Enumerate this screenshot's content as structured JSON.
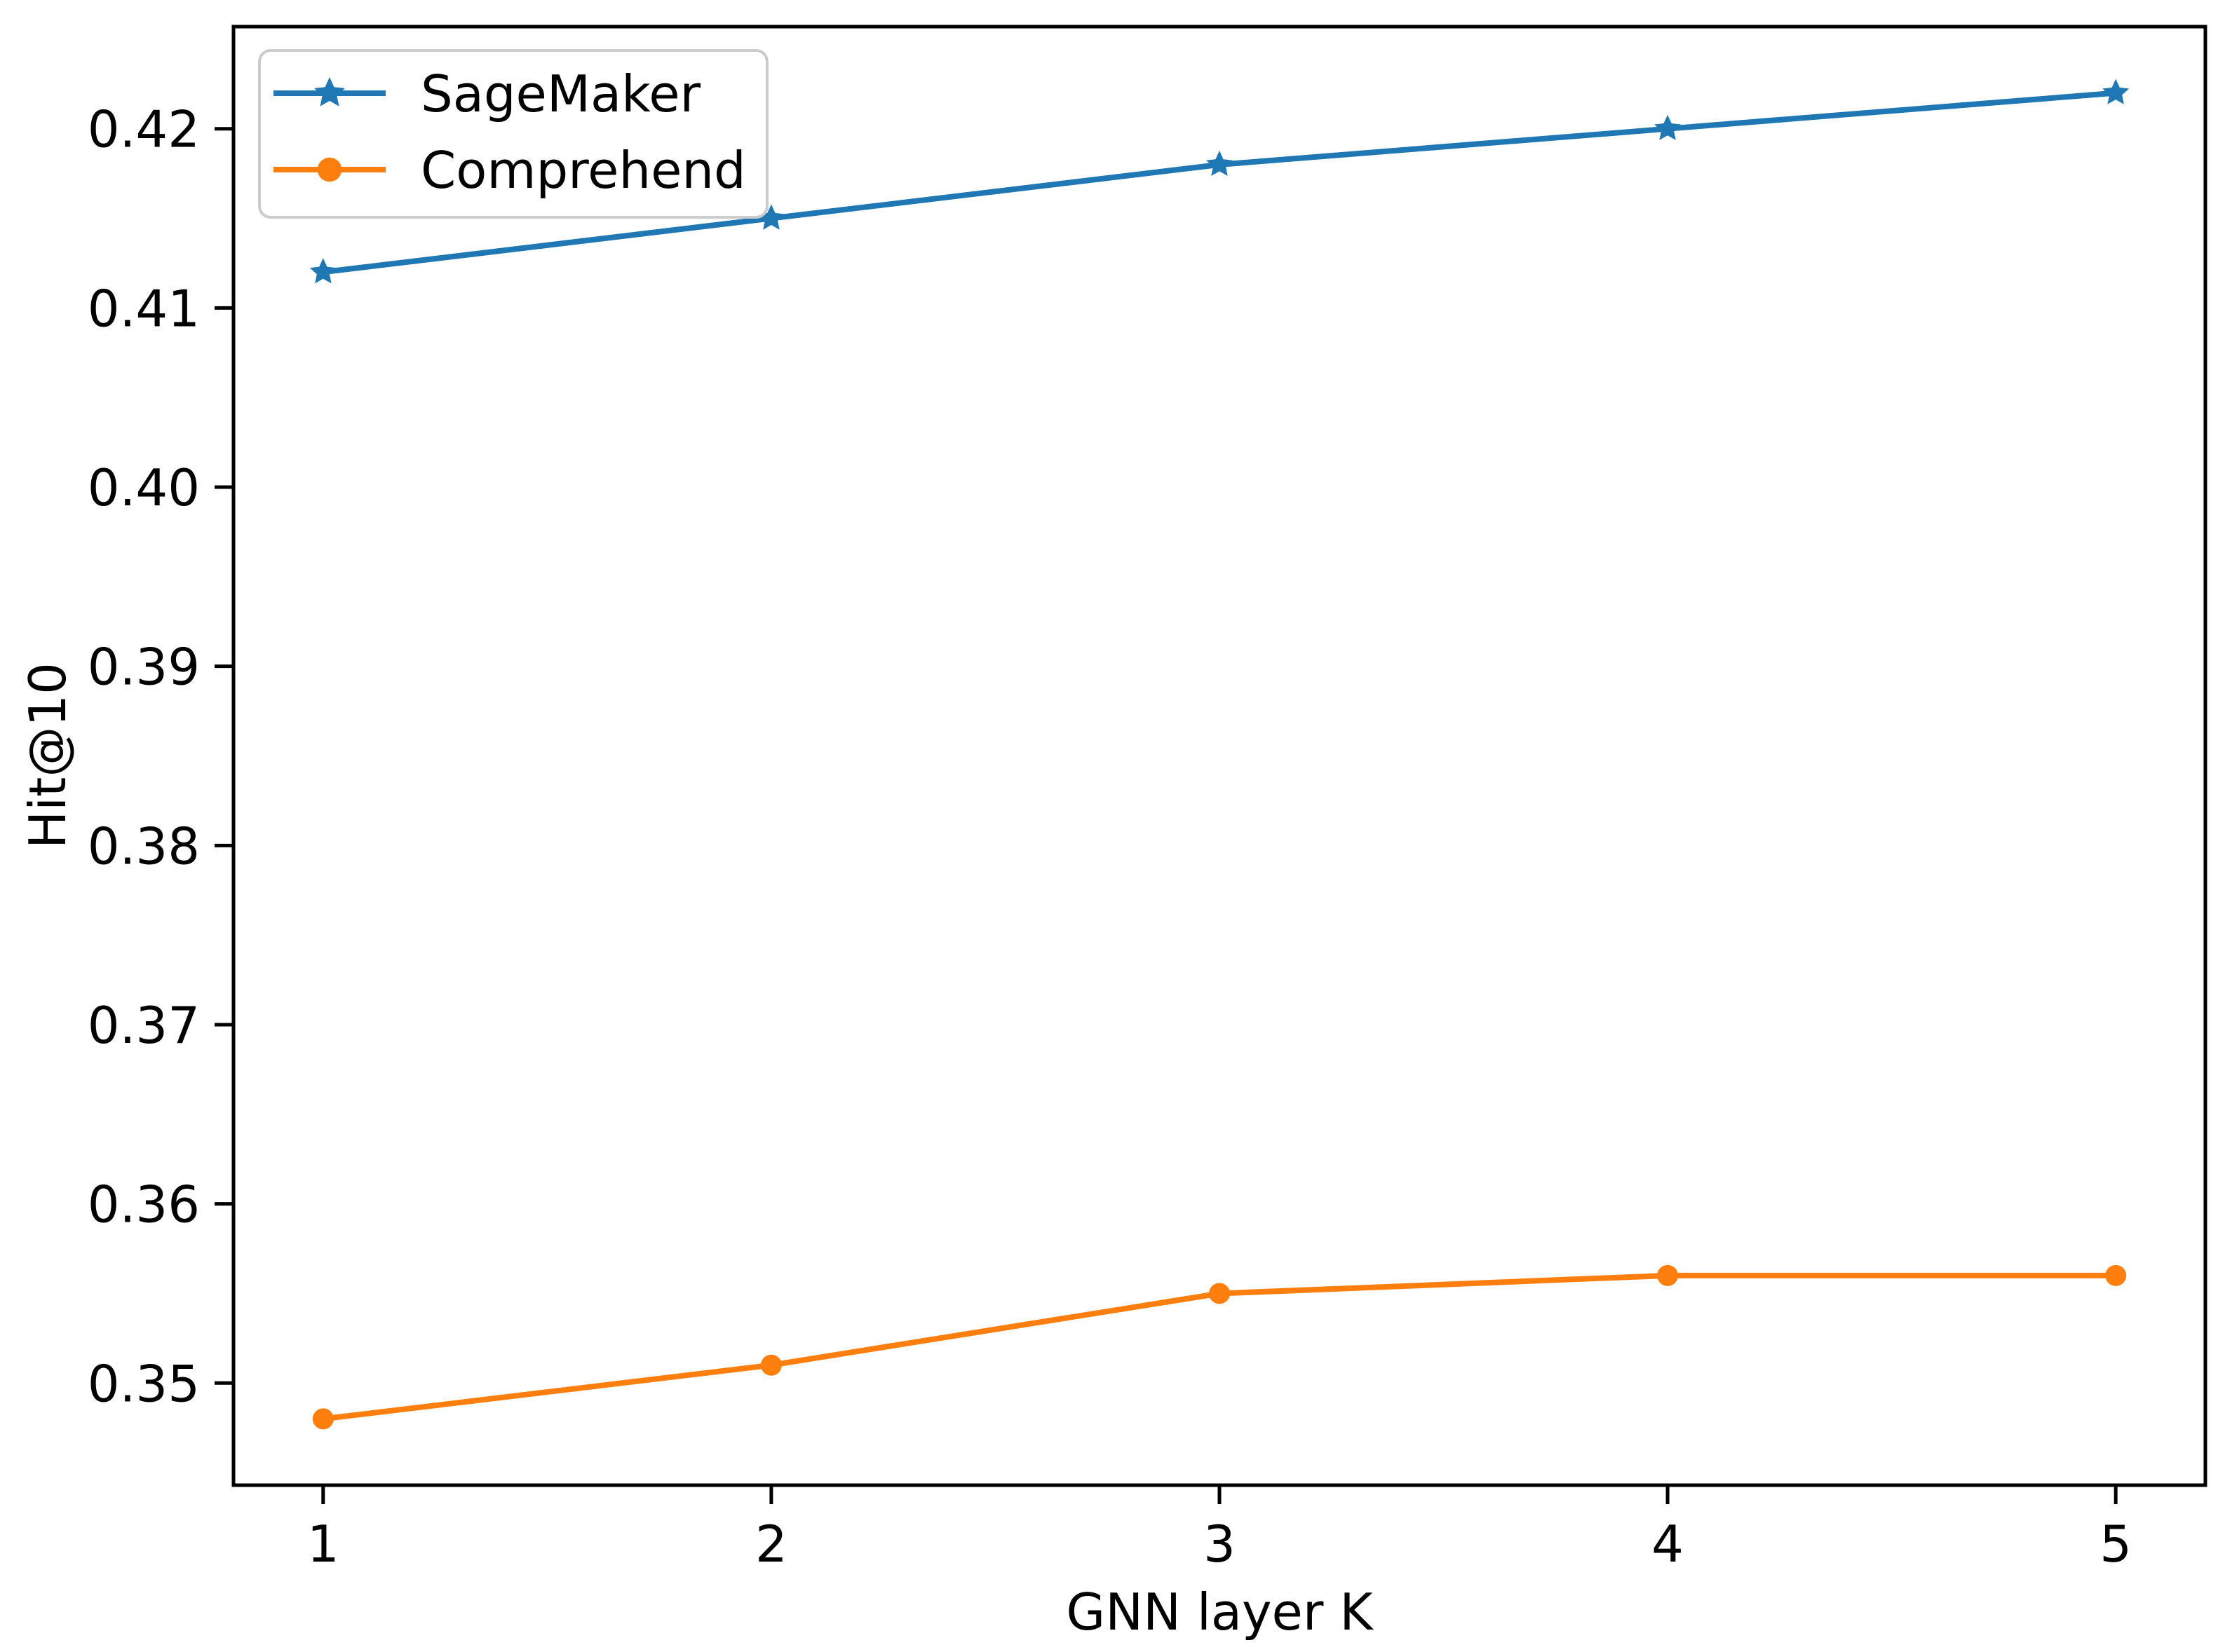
{
  "chart_data": {
    "type": "line",
    "title": "",
    "xlabel": "GNN layer K",
    "ylabel": "Hit@10",
    "x": [
      1,
      2,
      3,
      4,
      5
    ],
    "series": [
      {
        "name": "SageMaker",
        "color": "#1f77b4",
        "marker": "star",
        "values": [
          0.412,
          0.415,
          0.418,
          0.42,
          0.422
        ]
      },
      {
        "name": "Comprehend",
        "color": "#ff7f0e",
        "marker": "circle",
        "values": [
          0.348,
          0.351,
          0.355,
          0.356,
          0.356
        ]
      }
    ],
    "xlim": [
      0.8,
      5.2
    ],
    "ylim": [
      0.3443,
      0.4257
    ],
    "xticks": [
      1,
      2,
      3,
      4,
      5
    ],
    "xtick_labels": [
      "1",
      "2",
      "3",
      "4",
      "5"
    ],
    "yticks": [
      0.35,
      0.36,
      0.37,
      0.38,
      0.39,
      0.4,
      0.41,
      0.42
    ],
    "ytick_labels": [
      "0.35",
      "0.36",
      "0.37",
      "0.38",
      "0.39",
      "0.40",
      "0.41",
      "0.42"
    ],
    "legend_position": "upper left",
    "grid": false
  },
  "colors": {
    "axes": "#000000",
    "legend_border": "#cccccc",
    "background": "#ffffff"
  }
}
